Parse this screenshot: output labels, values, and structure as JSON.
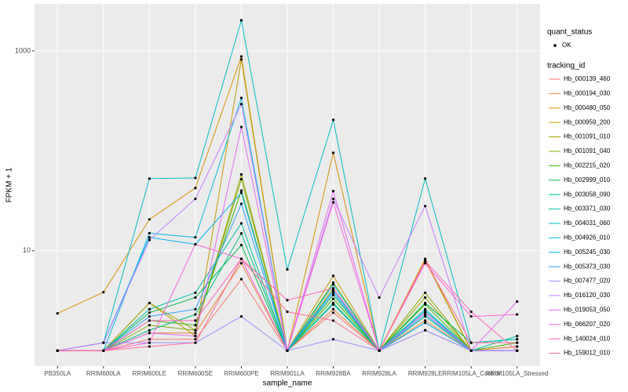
{
  "chart_data": {
    "type": "line",
    "x_label": "sample_name",
    "y_label": "FPKM + 1",
    "categories": [
      "PB350LA",
      "RRIM600LA",
      "RRIM600LE",
      "RRIM600SE",
      "RRIM600PE",
      "RRIM901LA",
      "RRIM928BA",
      "RRIM928LA",
      "RRIM928LE",
      "RRIM105LA_Control",
      "RRIM105LA_Stressed"
    ],
    "log_scale": true,
    "grid": true,
    "ylim": [
      0.7,
      2950
    ],
    "yticks": [
      10,
      1000
    ],
    "legend_position": "right",
    "point_legend_title": "quant_status",
    "point_legend_label": "OK",
    "point_color": "#000000",
    "legend_title": "tracking_id",
    "series": [
      {
        "name": "Hb_000139_460",
        "color": "#F8766D",
        "values": [
          1,
          1,
          1.3,
          1.3,
          5.2,
          1,
          2.4,
          1,
          1.6,
          1,
          1.1
        ]
      },
      {
        "name": "Hb_000194_030",
        "color": "#EA8331",
        "values": [
          1,
          1,
          1.5,
          1.5,
          7.5,
          1,
          2.6,
          1,
          2.0,
          1,
          1.1
        ]
      },
      {
        "name": "Hb_000480_050",
        "color": "#D89000",
        "values": [
          2.36,
          3.84,
          20.6,
          42.4,
          880,
          1,
          95.5,
          1,
          8.3,
          1,
          1
        ]
      },
      {
        "name": "Hb_000959_200",
        "color": "#C09B00",
        "values": [
          1,
          1,
          3.0,
          1.4,
          820,
          1,
          5.6,
          1,
          8.0,
          1,
          1
        ]
      },
      {
        "name": "Hb_001091_010",
        "color": "#A3A500",
        "values": [
          1,
          1,
          3.0,
          1.6,
          58,
          1,
          4.2,
          1,
          3.4,
          1,
          1
        ]
      },
      {
        "name": "Hb_001091_040",
        "color": "#7CAE00",
        "values": [
          1,
          1,
          1.8,
          1.6,
          52,
          1,
          4.8,
          1,
          3.8,
          1,
          1
        ]
      },
      {
        "name": "Hb_002215_020",
        "color": "#39B600",
        "values": [
          1,
          1,
          2.0,
          1.8,
          40,
          1,
          3.3,
          1,
          2.9,
          1,
          1.2
        ]
      },
      {
        "name": "Hb_002999_010",
        "color": "#00BB4E",
        "values": [
          1,
          1,
          2.4,
          3.4,
          11.4,
          1,
          3.6,
          1,
          3.0,
          1.2,
          1.3
        ]
      },
      {
        "name": "Hb_003058_090",
        "color": "#00BF7D",
        "values": [
          1,
          1,
          1.6,
          2.3,
          14.9,
          1,
          3.0,
          1,
          2.2,
          1,
          1
        ]
      },
      {
        "name": "Hb_003371_030",
        "color": "#00C1A3",
        "values": [
          1,
          1,
          2.6,
          3.8,
          18.8,
          1,
          2.9,
          1,
          2.5,
          1,
          1.4
        ]
      },
      {
        "name": "Hb_004031_060",
        "color": "#00BFC4",
        "values": [
          1,
          1.2,
          52.7,
          53.5,
          2024,
          6.5,
          204,
          1,
          52.7,
          1.2,
          1.3
        ]
      },
      {
        "name": "Hb_004926_010",
        "color": "#00BAE0",
        "values": [
          1,
          1,
          15,
          13.6,
          338,
          1,
          4.6,
          1,
          2.6,
          1,
          1
        ]
      },
      {
        "name": "Hb_005245_030",
        "color": "#00B0F6",
        "values": [
          1,
          1.2,
          13.6,
          11.6,
          38,
          1,
          4.0,
          1,
          1.9,
          1,
          1
        ]
      },
      {
        "name": "Hb_005373_030",
        "color": "#35A2FF",
        "values": [
          1,
          1,
          2.2,
          2.6,
          29.5,
          1,
          3.8,
          1,
          2.3,
          1,
          1
        ]
      },
      {
        "name": "Hb_007477_020",
        "color": "#9590FF",
        "values": [
          1,
          1.2,
          1.2,
          1.2,
          2.2,
          1,
          1.3,
          1,
          1.6,
          1,
          1
        ]
      },
      {
        "name": "Hb_016120_030",
        "color": "#C77CFF",
        "values": [
          1,
          1.2,
          12.8,
          33,
          293,
          1,
          33,
          3.4,
          28,
          1,
          1
        ]
      },
      {
        "name": "Hb_019053_050",
        "color": "#E76BF3",
        "values": [
          1,
          1,
          1.5,
          1.4,
          173,
          1,
          39.5,
          1,
          2.4,
          1,
          3.1
        ]
      },
      {
        "name": "Hb_066207_020",
        "color": "#FA62DB",
        "values": [
          1,
          1,
          1.2,
          11.6,
          8.3,
          1,
          30.5,
          1,
          7.5,
          2.2,
          2.3
        ]
      },
      {
        "name": "Hb_140024_010",
        "color": "#FF62BC",
        "values": [
          1,
          1,
          2.0,
          2.0,
          8.3,
          3.2,
          4.2,
          1,
          7.9,
          2.45,
          1
        ]
      },
      {
        "name": "Hb_159012_010",
        "color": "#FF6C91",
        "values": [
          1,
          1,
          1.1,
          1.2,
          8.3,
          2.45,
          2.0,
          1,
          7.9,
          1.2,
          1.2
        ]
      }
    ]
  }
}
